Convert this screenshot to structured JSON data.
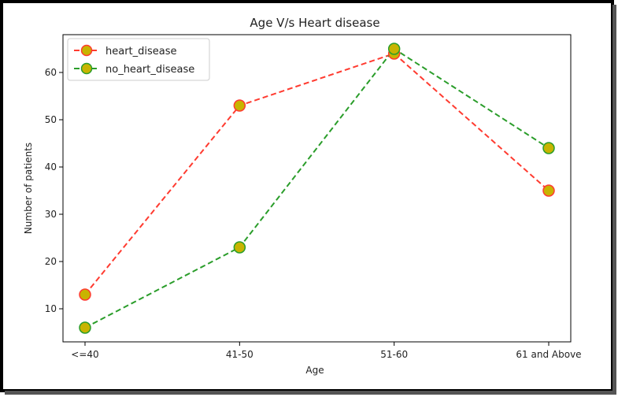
{
  "chart_data": {
    "type": "line",
    "title": "Age V/s Heart disease",
    "xlabel": "Age",
    "ylabel": "Number of patients",
    "categories": [
      "<=40",
      "41-50",
      "51-60",
      "61 and Above"
    ],
    "yticks": [
      10,
      20,
      30,
      40,
      50,
      60
    ],
    "ylim": [
      3,
      68
    ],
    "grid": false,
    "legend_placement": "top-left",
    "series": [
      {
        "name": "heart_disease",
        "values": [
          13,
          53,
          64,
          35
        ],
        "line_color": "#ff3b30",
        "marker_face": "#c8b400",
        "marker_edge": "#ff3b30",
        "line_style": "dashed"
      },
      {
        "name": "no_heart_disease",
        "values": [
          6,
          23,
          65,
          44
        ],
        "line_color": "#2a9d2a",
        "marker_face": "#c8b400",
        "marker_edge": "#2a9d2a",
        "line_style": "dashed"
      }
    ]
  }
}
